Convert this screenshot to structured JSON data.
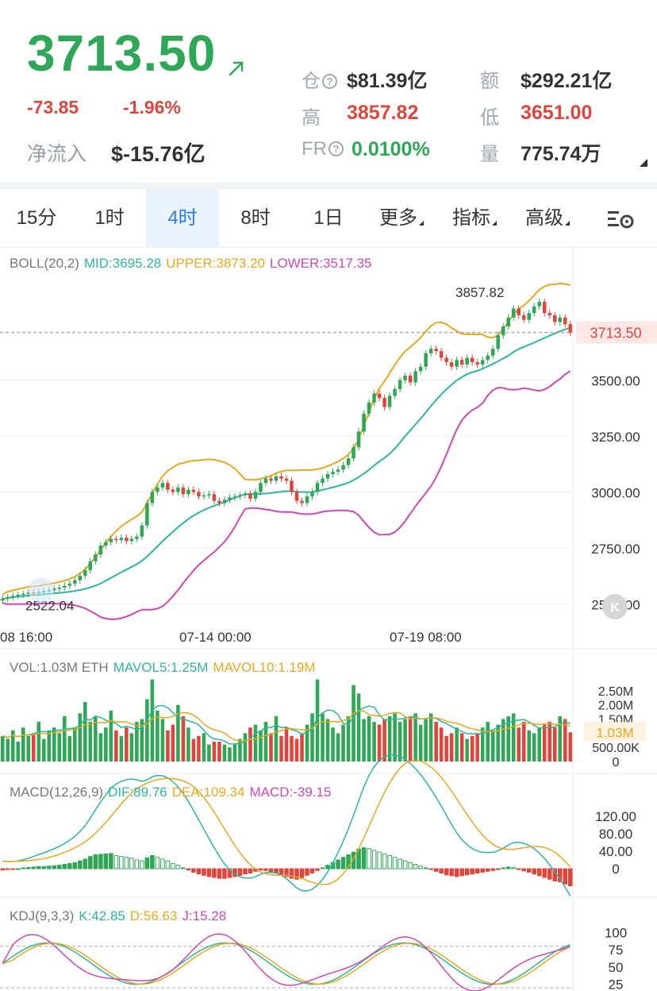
{
  "header": {
    "price": "3713.50",
    "change_abs": "-73.85",
    "change_pct": "-1.96%",
    "inflow_label": "净流入",
    "inflow_value": "$-15.76亿",
    "stats": {
      "oi_label": "仓",
      "oi_value": "$81.39亿",
      "turnover_label": "额",
      "turnover_value": "$292.21亿",
      "high_label": "高",
      "high_value": "3857.82",
      "low_label": "低",
      "low_value": "3651.00",
      "fr_label": "FR",
      "fr_value": "0.0100%",
      "volume_label": "量",
      "volume_value": "775.74万"
    },
    "colors": {
      "up": "#2ea756",
      "down": "#e0453b"
    }
  },
  "tabs": [
    {
      "label": "15分",
      "active": false
    },
    {
      "label": "1时",
      "active": false
    },
    {
      "label": "4时",
      "active": true
    },
    {
      "label": "8时",
      "active": false
    },
    {
      "label": "1日",
      "active": false
    },
    {
      "label": "更多",
      "active": false
    },
    {
      "label": "指标",
      "active": false
    },
    {
      "label": "高级",
      "active": false
    }
  ],
  "boll": {
    "label": "BOLL(20,2)",
    "mid": "MID:3695.28",
    "upper": "UPPER:3873.20",
    "lower": "LOWER:3517.35",
    "y_ticks": [
      "3500.00",
      "3250.00",
      "3000.00",
      "2750.00",
      "2500.00"
    ],
    "current_price_tag": "3713.50",
    "high_marker": "3857.82",
    "low_marker": "2522.04",
    "x_labels": [
      "08 16:00",
      "07-14 00:00",
      "07-19 08:00"
    ],
    "logo_glyph": "K"
  },
  "vol": {
    "label": "VOL:1.03M ETH",
    "mavol5": "MAVOL5:1.25M",
    "mavol10": "MAVOL10:1.19M",
    "y_ticks": [
      "2.50M",
      "2.00M",
      "1.50M",
      "500.00K",
      "0"
    ],
    "current_tag": "1.03M"
  },
  "macd": {
    "label": "MACD(12,26,9)",
    "dif": "DIF:89.76",
    "dea": "DEA:109.34",
    "macd": "MACD:-39.15",
    "y_ticks": [
      "120.00",
      "80.00",
      "40.00",
      "0"
    ]
  },
  "kdj": {
    "label": "KDJ(9,3,3)",
    "k": "K:42.85",
    "d": "D:56.63",
    "j": "J:15.28",
    "y_ticks": [
      "100",
      "75",
      "50",
      "25"
    ]
  },
  "chart_data": {
    "type": "candlestick",
    "title": "",
    "y_range": [
      2430,
      3950
    ],
    "close": [
      2522,
      2530,
      2535,
      2540,
      2545,
      2550,
      2548,
      2552,
      2558,
      2560,
      2568,
      2572,
      2580,
      2590,
      2605,
      2625,
      2650,
      2690,
      2720,
      2760,
      2775,
      2790,
      2785,
      2795,
      2780,
      2790,
      2800,
      2850,
      2950,
      3000,
      3020,
      3040,
      3010,
      3000,
      3020,
      2990,
      3010,
      3000,
      2980,
      2985,
      2990,
      2960,
      2950,
      2965,
      2975,
      2980,
      2985,
      2990,
      2970,
      3000,
      3040,
      3060,
      3050,
      3070,
      3060,
      3050,
      3000,
      2960,
      2950,
      2980,
      3000,
      3040,
      3060,
      3080,
      3090,
      3100,
      3120,
      3150,
      3200,
      3270,
      3350,
      3400,
      3440,
      3420,
      3380,
      3430,
      3460,
      3500,
      3520,
      3490,
      3540,
      3560,
      3620,
      3640,
      3630,
      3600,
      3580,
      3560,
      3590,
      3570,
      3600,
      3580,
      3570,
      3590,
      3610,
      3640,
      3700,
      3740,
      3780,
      3820,
      3790,
      3770,
      3800,
      3830,
      3850,
      3800,
      3790,
      3760,
      3780,
      3750,
      3713
    ],
    "vol_m": [
      0.9,
      0.8,
      1.1,
      0.7,
      1.2,
      0.9,
      1.0,
      1.4,
      0.8,
      1.1,
      1.2,
      1.0,
      1.6,
      0.9,
      1.2,
      1.7,
      2.1,
      1.4,
      1.6,
      1.0,
      1.2,
      1.8,
      1.1,
      0.9,
      1.2,
      1.0,
      1.4,
      1.5,
      2.2,
      2.9,
      1.8,
      1.5,
      1.1,
      1.3,
      2.0,
      1.6,
      1.2,
      0.8,
      0.9,
      1.0,
      0.6,
      0.7,
      0.7,
      0.6,
      0.5,
      0.6,
      0.8,
      1.0,
      1.2,
      1.3,
      1.1,
      1.4,
      1.0,
      1.6,
      0.9,
      1.2,
      0.9,
      0.8,
      1.0,
      1.3,
      1.7,
      2.9,
      1.7,
      1.5,
      1.2,
      1.0,
      1.3,
      1.6,
      2.7,
      2.4,
      1.5,
      1.6,
      1.4,
      1.3,
      1.5,
      1.6,
      1.7,
      1.4,
      1.5,
      1.6,
      1.7,
      1.3,
      1.5,
      1.7,
      1.4,
      1.2,
      0.9,
      1.0,
      1.2,
      1.0,
      0.8,
      0.9,
      1.0,
      1.2,
      1.4,
      1.1,
      1.3,
      1.5,
      1.6,
      1.7,
      1.2,
      1.4,
      1.1,
      1.0,
      1.2,
      1.3,
      1.4,
      1.2,
      1.6,
      1.5,
      1.03
    ],
    "macd_hist": [
      -3,
      -2,
      -1,
      0,
      2,
      3,
      4,
      5,
      5,
      6,
      7,
      8,
      10,
      12,
      14,
      18,
      22,
      28,
      32,
      33,
      34,
      35,
      30,
      28,
      26,
      24,
      20,
      18,
      25,
      30,
      26,
      22,
      18,
      12,
      8,
      2,
      -3,
      -8,
      -12,
      -15,
      -18,
      -20,
      -22,
      -22,
      -20,
      -18,
      -15,
      -12,
      -10,
      -6,
      -3,
      -4,
      -8,
      -10,
      -14,
      -18,
      -22,
      -24,
      -20,
      -15,
      -10,
      -4,
      2,
      8,
      14,
      20,
      26,
      32,
      38,
      45,
      48,
      46,
      42,
      38,
      34,
      30,
      26,
      22,
      18,
      14,
      10,
      6,
      2,
      -2,
      -6,
      -10,
      -14,
      -16,
      -18,
      -16,
      -14,
      -12,
      -10,
      -8,
      -6,
      -4,
      -2,
      2,
      4,
      3,
      -2,
      -5,
      -8,
      -12,
      -16,
      -20,
      -24,
      -28,
      -30,
      -35,
      -39.15
    ]
  }
}
